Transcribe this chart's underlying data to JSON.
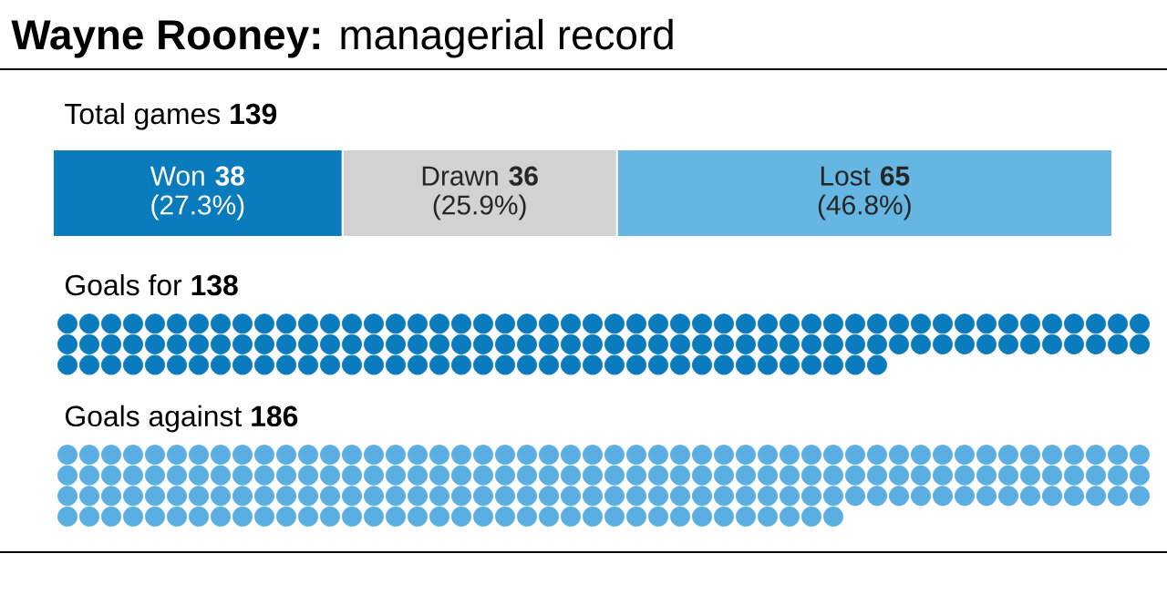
{
  "chart_data": [
    {
      "type": "bar",
      "title": "**Wayne Rooney:** managerial record",
      "subtitle": "Total games **139**",
      "orientation": "horizontal",
      "stacked": true,
      "categories": [
        null
      ],
      "series": [
        {
          "name": "Won",
          "color": "#0a7bbd",
          "values": [
            38
          ],
          "value_labels": [
            "**38** (27.3%)"
          ]
        },
        {
          "name": "Drawn",
          "color": "#d2d2d2",
          "values": [
            36
          ],
          "value_labels": [
            "**36** (25.9%)"
          ]
        },
        {
          "name": "Lost",
          "color": "#66b6e3",
          "values": [
            65
          ],
          "value_labels": [
            "**65** (46.8%)"
          ]
        }
      ]
    },
    {
      "type": "other",
      "title": "Goals for",
      "values": [
        138
      ],
      "value_labels": [
        "138"
      ],
      "color": "#0a7bbd"
    },
    {
      "type": "other",
      "title": "Goals against",
      "values": [
        186
      ],
      "value_labels": [
        "186"
      ],
      "color": "#5aaee2"
    }
  ]
}
